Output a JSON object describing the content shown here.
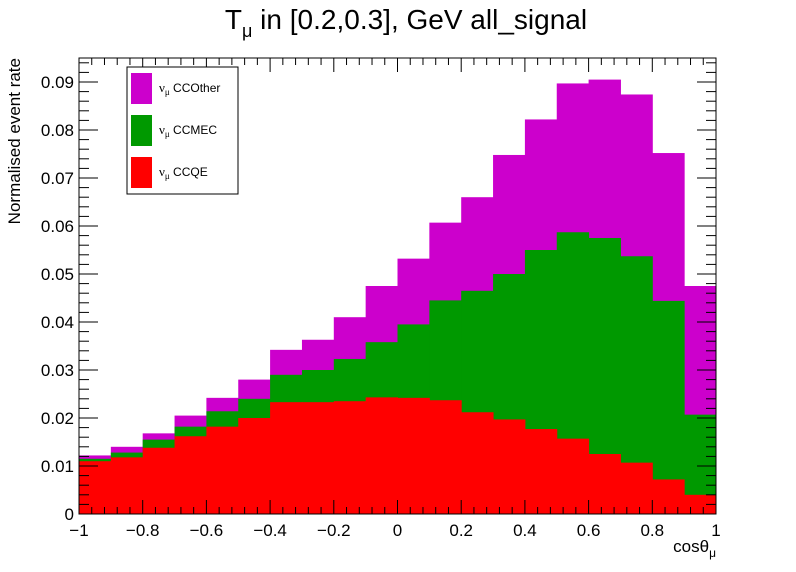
{
  "chart_data": {
    "type": "bar",
    "stacked": true,
    "title": {
      "main": "T",
      "sub": "μ",
      "rest": " in [0.2,0.3], GeV all_signal"
    },
    "xlabel": {
      "main": "cosθ",
      "sub": "μ"
    },
    "ylabel": "Normalised event rate",
    "xlim": [
      -1,
      1
    ],
    "ylim": [
      0,
      0.095
    ],
    "x_ticks": [
      "−1",
      "−0.8",
      "−0.6",
      "−0.4",
      "−0.2",
      "0",
      "0.2",
      "0.4",
      "0.6",
      "0.8",
      "1"
    ],
    "x_tick_values": [
      -1,
      -0.8,
      -0.6,
      -0.4,
      -0.2,
      0,
      0.2,
      0.4,
      0.6,
      0.8,
      1
    ],
    "y_ticks": [
      "0",
      "0.01",
      "0.02",
      "0.03",
      "0.04",
      "0.05",
      "0.06",
      "0.07",
      "0.08",
      "0.09"
    ],
    "y_tick_values": [
      0,
      0.01,
      0.02,
      0.03,
      0.04,
      0.05,
      0.06,
      0.07,
      0.08,
      0.09
    ],
    "bin_edges": [
      -1,
      -0.9,
      -0.8,
      -0.7,
      -0.6,
      -0.5,
      -0.4,
      -0.3,
      -0.2,
      -0.1,
      0,
      0.1,
      0.2,
      0.3,
      0.4,
      0.5,
      0.6,
      0.7,
      0.8,
      0.9,
      1
    ],
    "series": [
      {
        "name": "CCQE",
        "color": "#ff0000",
        "values": [
          0.011,
          0.0118,
          0.0138,
          0.0162,
          0.0182,
          0.02,
          0.0233,
          0.0233,
          0.0235,
          0.0243,
          0.0242,
          0.0237,
          0.0212,
          0.0197,
          0.0177,
          0.0157,
          0.0125,
          0.0107,
          0.0072,
          0.004
        ]
      },
      {
        "name": "CCMEC",
        "color": "#009900",
        "values": [
          0.0005,
          0.001,
          0.0017,
          0.002,
          0.0032,
          0.004,
          0.0057,
          0.0067,
          0.0088,
          0.0115,
          0.0153,
          0.0208,
          0.0253,
          0.0303,
          0.0373,
          0.043,
          0.045,
          0.043,
          0.0372,
          0.0167
        ]
      },
      {
        "name": "CCOther",
        "color": "#cc00cc",
        "values": [
          0.0007,
          0.0012,
          0.0013,
          0.0023,
          0.0028,
          0.004,
          0.0052,
          0.0063,
          0.0087,
          0.0117,
          0.0137,
          0.0162,
          0.0195,
          0.0248,
          0.0272,
          0.031,
          0.033,
          0.0337,
          0.0308,
          0.0268
        ]
      }
    ],
    "legend": {
      "position": "top-left",
      "entries": [
        {
          "main": "ν",
          "sub": "μ",
          "label": " CCOther",
          "color": "#cc00cc"
        },
        {
          "main": "ν",
          "sub": "μ",
          "label": " CCMEC",
          "color": "#009900"
        },
        {
          "main": "ν",
          "sub": "μ",
          "label": " CCQE",
          "color": "#ff0000"
        }
      ]
    }
  }
}
